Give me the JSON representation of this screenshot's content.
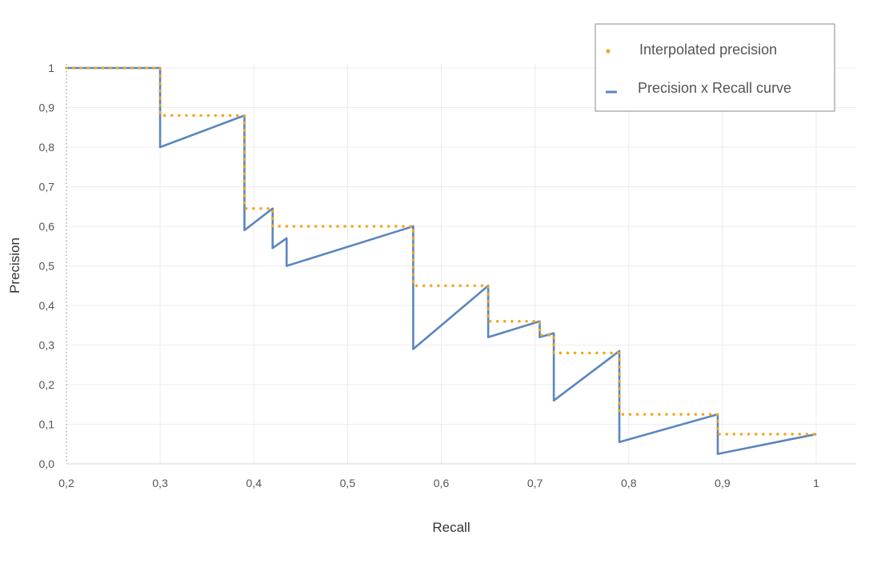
{
  "chart_data": {
    "type": "line",
    "xlabel": "Recall",
    "ylabel": "Precision",
    "xlim": [
      0.2,
      1.0
    ],
    "ylim": [
      0.0,
      1.0
    ],
    "x_ticks": [
      "0,2",
      "0,3",
      "0,4",
      "0,5",
      "0,6",
      "0,7",
      "0,8",
      "0,9",
      "1"
    ],
    "x_tick_values": [
      0.2,
      0.3,
      0.4,
      0.5,
      0.6,
      0.7,
      0.8,
      0.9,
      1.0
    ],
    "y_ticks": [
      "0,0",
      "0,1",
      "0,2",
      "0,3",
      "0,4",
      "0,5",
      "0,6",
      "0,7",
      "0,8",
      "0,9",
      "1"
    ],
    "y_tick_values": [
      0.0,
      0.1,
      0.2,
      0.3,
      0.4,
      0.5,
      0.6,
      0.7,
      0.8,
      0.9,
      1.0
    ],
    "grid": true,
    "legend_position": "top-right",
    "series": [
      {
        "name": "Interpolated precision",
        "style": "dotted",
        "color": "#F5A623",
        "points": [
          [
            0.2,
            1.0
          ],
          [
            0.3,
            1.0
          ],
          [
            0.3,
            0.88
          ],
          [
            0.39,
            0.88
          ],
          [
            0.39,
            0.645
          ],
          [
            0.42,
            0.645
          ],
          [
            0.42,
            0.6
          ],
          [
            0.57,
            0.6
          ],
          [
            0.57,
            0.45
          ],
          [
            0.65,
            0.45
          ],
          [
            0.65,
            0.36
          ],
          [
            0.705,
            0.36
          ],
          [
            0.705,
            0.325
          ],
          [
            0.72,
            0.325
          ],
          [
            0.72,
            0.28
          ],
          [
            0.79,
            0.28
          ],
          [
            0.79,
            0.125
          ],
          [
            0.895,
            0.125
          ],
          [
            0.895,
            0.075
          ],
          [
            1.0,
            0.075
          ]
        ]
      },
      {
        "name": "Precision x Recall curve",
        "style": "solid",
        "color": "#5B86BE",
        "points": [
          [
            0.2,
            1.0
          ],
          [
            0.3,
            1.0
          ],
          [
            0.3,
            0.8
          ],
          [
            0.39,
            0.88
          ],
          [
            0.39,
            0.59
          ],
          [
            0.42,
            0.645
          ],
          [
            0.42,
            0.545
          ],
          [
            0.435,
            0.57
          ],
          [
            0.435,
            0.5
          ],
          [
            0.57,
            0.6
          ],
          [
            0.57,
            0.29
          ],
          [
            0.65,
            0.45
          ],
          [
            0.65,
            0.32
          ],
          [
            0.705,
            0.36
          ],
          [
            0.705,
            0.32
          ],
          [
            0.72,
            0.33
          ],
          [
            0.72,
            0.16
          ],
          [
            0.79,
            0.285
          ],
          [
            0.79,
            0.055
          ],
          [
            0.895,
            0.125
          ],
          [
            0.895,
            0.025
          ],
          [
            1.0,
            0.075
          ]
        ]
      }
    ]
  }
}
